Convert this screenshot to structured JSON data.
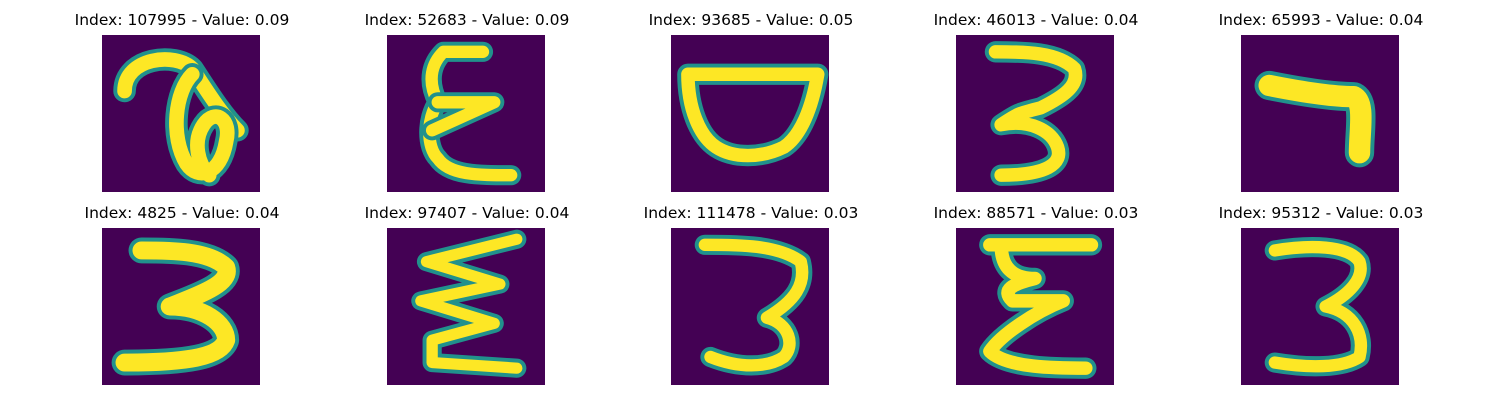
{
  "figure": {
    "background": "#ffffff",
    "colormap": "viridis",
    "image_background_color": "#440154",
    "stroke_color": "#fde725",
    "stroke_edge_color": "#21918c"
  },
  "panels": [
    {
      "title": "Index: 107995 - Value: 0.09",
      "index": "107995",
      "value": "0.09",
      "glyph": "loop-hook"
    },
    {
      "title": "Index: 52683 - Value: 0.09",
      "index": "52683",
      "value": "0.09",
      "glyph": "epsilon"
    },
    {
      "title": "Index: 93685 - Value: 0.05",
      "index": "93685",
      "value": "0.05",
      "glyph": "bowl"
    },
    {
      "title": "Index: 46013 - Value: 0.04",
      "index": "46013",
      "value": "0.04",
      "glyph": "three"
    },
    {
      "title": "Index: 65993 - Value: 0.04",
      "index": "65993",
      "value": "0.04",
      "glyph": "seven"
    },
    {
      "title": "Index: 4825 - Value: 0.04",
      "index": "4825",
      "value": "0.04",
      "glyph": "three-bold"
    },
    {
      "title": "Index: 97407 - Value: 0.04",
      "index": "97407",
      "value": "0.04",
      "glyph": "zigzag"
    },
    {
      "title": "Index: 111478 - Value: 0.03",
      "index": "111478",
      "value": "0.03",
      "glyph": "three-open"
    },
    {
      "title": "Index: 88571 - Value: 0.03",
      "index": "88571",
      "value": "0.03",
      "glyph": "sigma-epsilon"
    },
    {
      "title": "Index: 95312 - Value: 0.03",
      "index": "95312",
      "value": "0.03",
      "glyph": "three-thin"
    }
  ]
}
